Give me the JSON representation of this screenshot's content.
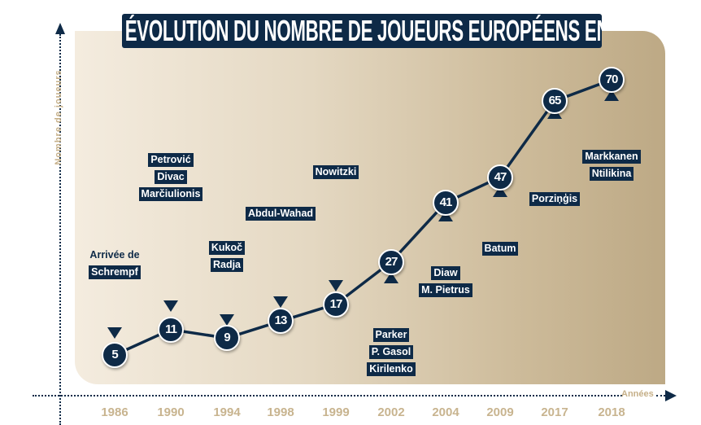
{
  "chart_data": {
    "type": "line",
    "title": "ÉVOLUTION DU NOMBRE DE JOUEURS EUROPÉENS EN NBA",
    "xlabel": "Années",
    "ylabel": "Nombre de joueurs",
    "categories": [
      "1986",
      "1990",
      "1994",
      "1998",
      "1999",
      "2002",
      "2004",
      "2009",
      "2017",
      "2018"
    ],
    "values": [
      5,
      11,
      9,
      13,
      17,
      27,
      41,
      47,
      65,
      70
    ],
    "grid": false,
    "colors": {
      "line": "#0e2a47",
      "marker": "#0e2a47",
      "axis_text": "#c8b48f",
      "background_start": "#f4ecdf",
      "background_end": "#bda985"
    },
    "annotations": [
      {
        "year": "1986",
        "lines": [
          "Arrivée de",
          "Schrempf"
        ],
        "position": "above"
      },
      {
        "year": "1990",
        "lines": [
          "Petrović",
          "Divac",
          "Marčiulionis"
        ],
        "position": "above"
      },
      {
        "year": "1994",
        "lines": [
          "Kukoč",
          "Radja"
        ],
        "position": "above"
      },
      {
        "year": "1998",
        "lines": [
          "Abdul-Wahad"
        ],
        "position": "above"
      },
      {
        "year": "1999",
        "lines": [
          "Nowitzki"
        ],
        "position": "above"
      },
      {
        "year": "2002",
        "lines": [
          "Parker",
          "P. Gasol",
          "Kirilenko"
        ],
        "position": "below"
      },
      {
        "year": "2004",
        "lines": [
          "Diaw",
          "M. Pietrus"
        ],
        "position": "below"
      },
      {
        "year": "2009",
        "lines": [
          "Batum"
        ],
        "position": "below"
      },
      {
        "year": "2017",
        "lines": [
          "Porziņģis"
        ],
        "position": "below"
      },
      {
        "year": "2018",
        "lines": [
          "Markkanen",
          "Ntilikina"
        ],
        "position": "below"
      }
    ]
  }
}
